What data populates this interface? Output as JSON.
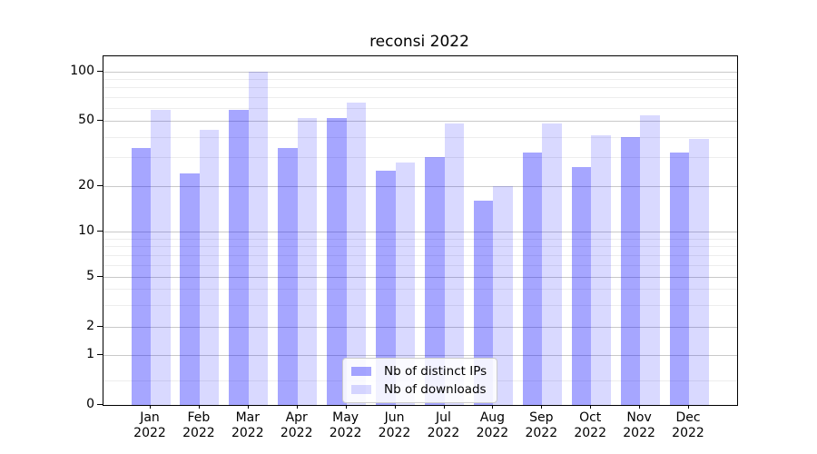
{
  "chart_data": {
    "type": "bar",
    "title": "reconsi 2022",
    "yscale": "symlog",
    "categories": [
      "Jan 2022",
      "Feb 2022",
      "Mar 2022",
      "Apr 2022",
      "May 2022",
      "Jun 2022",
      "Jul 2022",
      "Aug 2022",
      "Sep 2022",
      "Oct 2022",
      "Nov 2022",
      "Dec 2022"
    ],
    "series": [
      {
        "name": "Nb of distinct IPs",
        "color": "#0000FF",
        "alpha": 0.35,
        "values": [
          34,
          24,
          58,
          34,
          52,
          25,
          30,
          16,
          32,
          26,
          40,
          32
        ]
      },
      {
        "name": "Nb of downloads",
        "color": "#0000FF",
        "alpha": 0.15,
        "values": [
          58,
          44,
          100,
          52,
          65,
          28,
          48,
          20,
          48,
          41,
          54,
          39
        ]
      }
    ],
    "y_ticks": [
      0,
      1,
      2,
      5,
      10,
      20,
      50,
      100
    ],
    "y_minor_ticks": [
      0.5,
      3,
      4,
      6,
      7,
      8,
      9,
      30,
      40,
      60,
      70,
      80,
      90
    ],
    "ylim": [
      0,
      125
    ],
    "grid": true,
    "legend": {
      "position": "lower center"
    }
  },
  "colors": {
    "bar_ips_rendered": "#A6A6FF",
    "bar_downloads_rendered": "#D9D9FF",
    "grid_major": "#C9C9C9",
    "grid_minor": "#EDEDED",
    "axis": "#000000",
    "legend_border": "#CCCCCC",
    "background": "#FFFFFF"
  }
}
